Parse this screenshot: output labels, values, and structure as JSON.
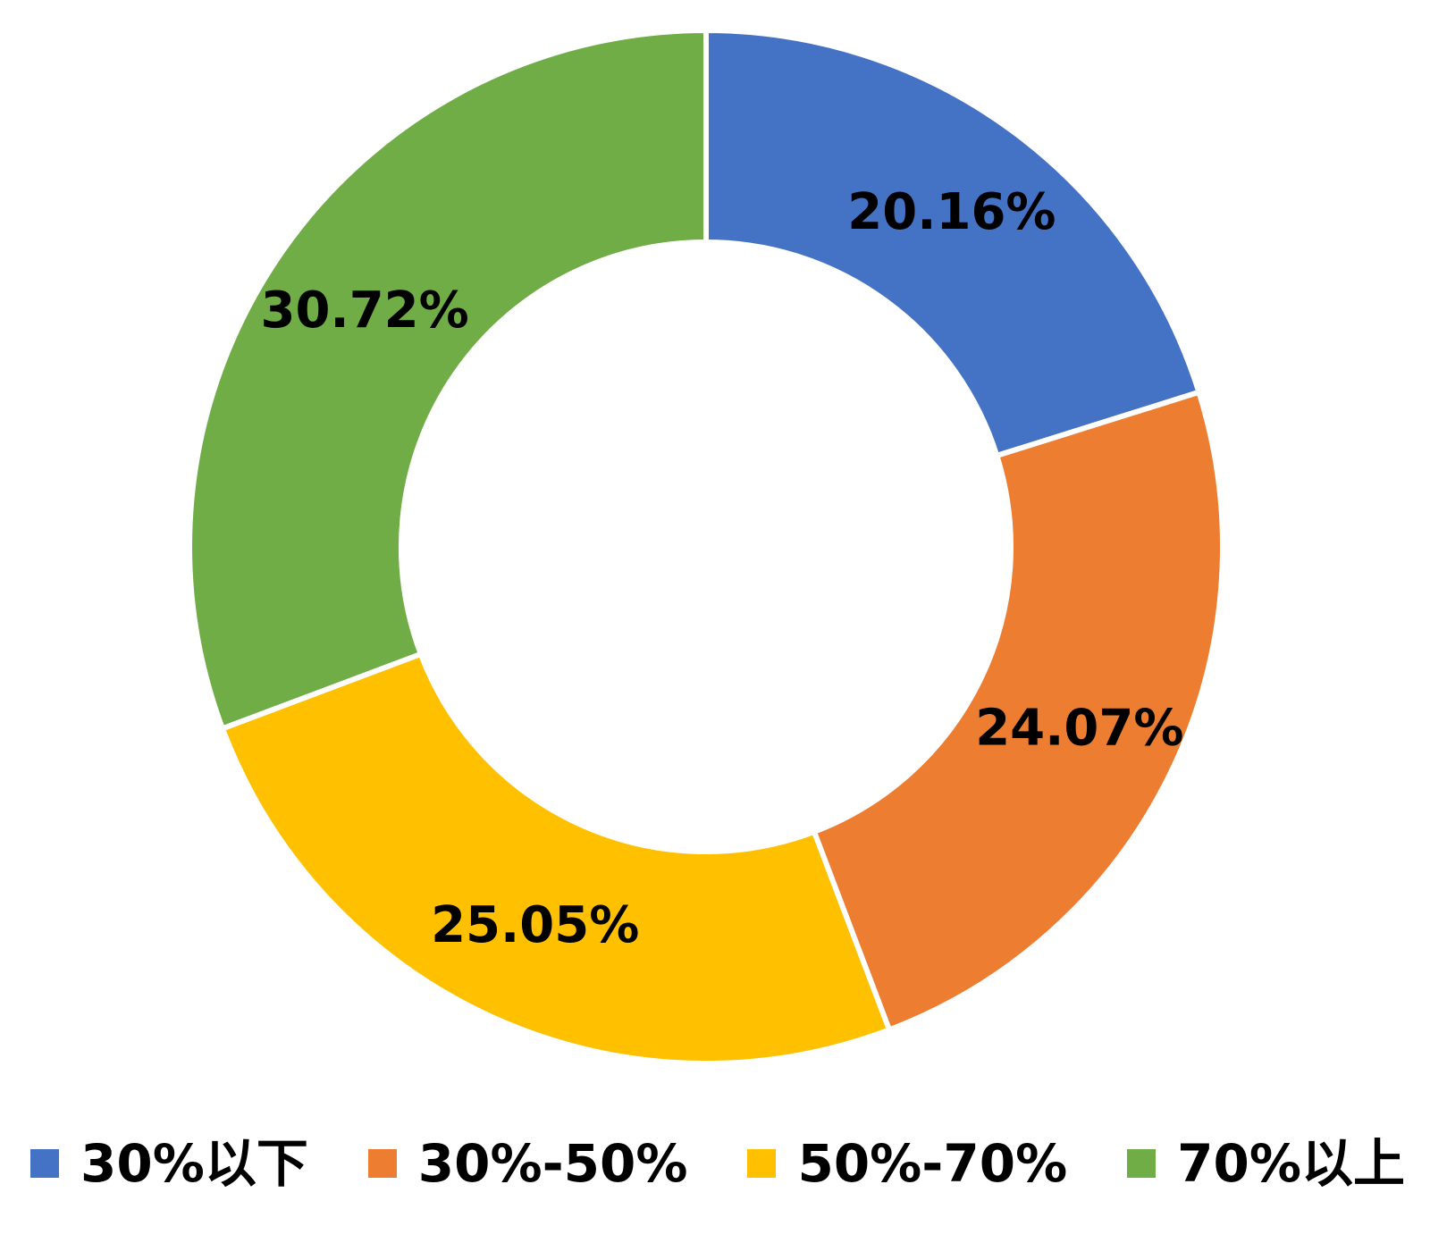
{
  "chart_data": {
    "type": "pie",
    "subtype": "donut",
    "title": "",
    "categories": [
      "30%以下",
      "30%-50%",
      "50%-70%",
      "70%以上"
    ],
    "values": [
      20.16,
      24.07,
      25.05,
      30.72
    ],
    "data_labels": [
      "20.16%",
      "24.07%",
      "25.05%",
      "30.72%"
    ],
    "colors": [
      "#4472c4",
      "#ed7d31",
      "#ffc000",
      "#70ad47"
    ],
    "start_angle_deg": 0,
    "direction": "clockwise",
    "inner_radius_ratio": 0.59,
    "slice_gap_color": "#ffffff",
    "label_color": "#000000",
    "legend_position": "bottom",
    "background": "#ffffff"
  },
  "legend": {
    "items": [
      {
        "label": "30%以下",
        "color": "#4472c4"
      },
      {
        "label": "30%-50%",
        "color": "#ed7d31"
      },
      {
        "label": "50%-70%",
        "color": "#ffc000"
      },
      {
        "label": "70%以上",
        "color": "#70ad47"
      }
    ]
  }
}
